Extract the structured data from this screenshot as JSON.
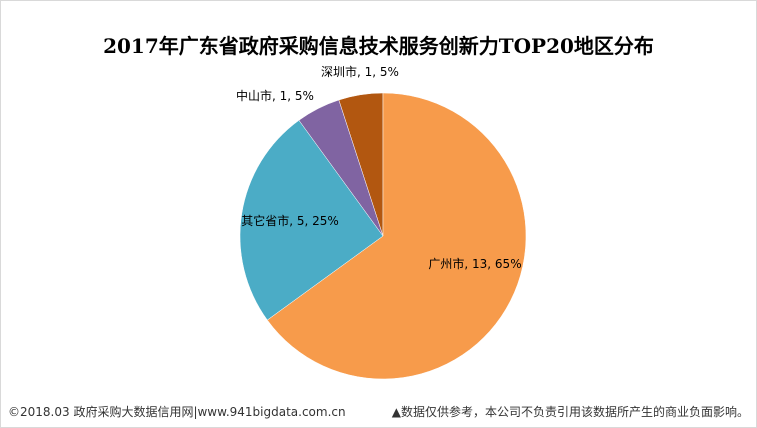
{
  "chart_data": {
    "type": "pie",
    "title": "2017年广东省政府采购信息技术服务创新力TOP20地区分布",
    "slices": [
      {
        "label": "深圳市",
        "value": 1,
        "percent": "5%",
        "color": "#b25710"
      },
      {
        "label": "广州市",
        "value": 13,
        "percent": "65%",
        "color": "#f79b4b"
      },
      {
        "label": "其它省市",
        "value": 5,
        "percent": "25%",
        "color": "#4bacc6"
      },
      {
        "label": "中山市",
        "value": 1,
        "percent": "5%",
        "color": "#8064a2"
      }
    ],
    "data_labels": [
      "深圳市, 1, 5%",
      "广州市, 13, 65%",
      "其它省市, 5, 25%",
      "中山市, 1, 5%"
    ],
    "legend": "none"
  },
  "footer": {
    "left": "©2018.03 政府采购大数据信用网|www.941bigdata.com.cn",
    "right": "▲数据仅供参考，本公司不负责引用该数据所产生的商业负面影响。"
  }
}
